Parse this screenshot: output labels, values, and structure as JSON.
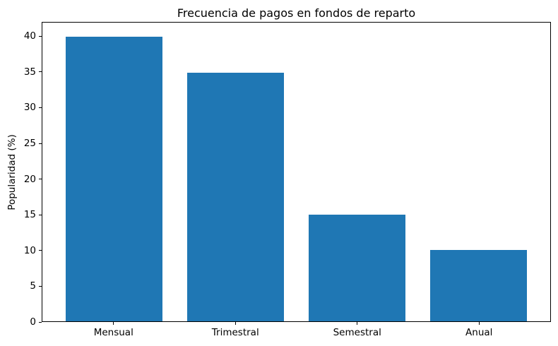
{
  "chart_data": {
    "type": "bar",
    "title": "Frecuencia de pagos en fondos de reparto",
    "categories": [
      "Mensual",
      "Trimestral",
      "Semestral",
      "Anual"
    ],
    "values": [
      40,
      35,
      15,
      10
    ],
    "xlabel": "",
    "ylabel": "Popularidad (%)",
    "ylim": [
      0,
      42
    ],
    "yticks": [
      0,
      5,
      10,
      15,
      20,
      25,
      30,
      35,
      40
    ],
    "bar_color": "#1f77b4",
    "axis_color": "#000000",
    "grid": false,
    "legend": "none",
    "bar_relative_width": 0.8
  }
}
